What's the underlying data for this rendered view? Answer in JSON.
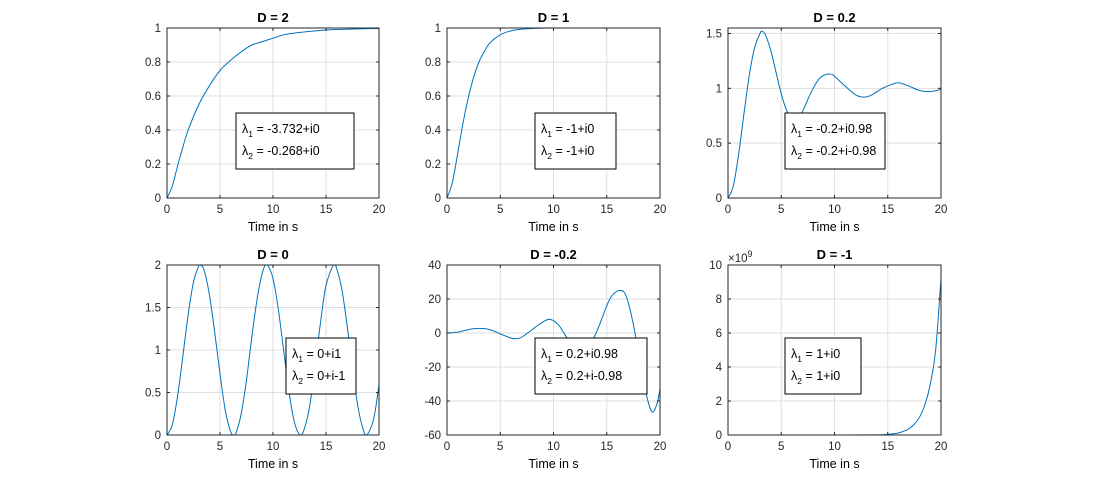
{
  "chart_data": [
    {
      "type": "line",
      "title": "D = 2",
      "xlabel": "Time in s",
      "xlim": [
        0,
        20
      ],
      "ylim": [
        0,
        1
      ],
      "xticks": [
        0,
        5,
        10,
        15,
        20
      ],
      "yticks": [
        0,
        0.2,
        0.4,
        0.6,
        0.8,
        1
      ],
      "grid": true,
      "annotation": [
        {
          "symbol": "λ",
          "subscript": "1",
          "text": " = -3.732+i0"
        },
        {
          "symbol": "λ",
          "subscript": "2",
          "text": " = -0.268+i0"
        }
      ],
      "series": [
        {
          "x": [
            0,
            0.5,
            1,
            1.5,
            2,
            3,
            4,
            5,
            6,
            7,
            8,
            9,
            10,
            11,
            12,
            13,
            14,
            15,
            16,
            17,
            18,
            19,
            20
          ],
          "y": [
            0,
            0.07,
            0.19,
            0.3,
            0.4,
            0.55,
            0.66,
            0.75,
            0.81,
            0.86,
            0.9,
            0.92,
            0.94,
            0.96,
            0.97,
            0.977,
            0.983,
            0.988,
            0.991,
            0.993,
            0.995,
            0.996,
            0.997
          ]
        }
      ]
    },
    {
      "type": "line",
      "title": "D = 1",
      "xlabel": "Time in s",
      "xlim": [
        0,
        20
      ],
      "ylim": [
        0,
        1
      ],
      "xticks": [
        0,
        5,
        10,
        15,
        20
      ],
      "yticks": [
        0,
        0.2,
        0.4,
        0.6,
        0.8,
        1
      ],
      "grid": true,
      "annotation": [
        {
          "symbol": "λ",
          "subscript": "1",
          "text": " = -1+i0"
        },
        {
          "symbol": "λ",
          "subscript": "2",
          "text": " = -1+i0"
        }
      ],
      "series": [
        {
          "x": [
            0,
            0.5,
            1,
            1.5,
            2,
            2.5,
            3,
            3.5,
            4,
            5,
            6,
            7,
            8,
            9,
            10,
            12,
            15,
            20
          ],
          "y": [
            0,
            0.09,
            0.26,
            0.44,
            0.59,
            0.71,
            0.8,
            0.86,
            0.91,
            0.96,
            0.983,
            0.993,
            0.997,
            0.999,
            1,
            1,
            1,
            1
          ]
        }
      ]
    },
    {
      "type": "line",
      "title": "D = 0.2",
      "xlabel": "Time in s",
      "xlim": [
        0,
        20
      ],
      "ylim": [
        0,
        1.55
      ],
      "xticks": [
        0,
        5,
        10,
        15,
        20
      ],
      "yticks": [
        0,
        0.5,
        1,
        1.5
      ],
      "grid": true,
      "annotation": [
        {
          "symbol": "λ",
          "subscript": "1",
          "text": " = -0.2+i0.98"
        },
        {
          "symbol": "λ",
          "subscript": "2",
          "text": " = -0.2+i-0.98"
        }
      ],
      "series": [
        {
          "x": [
            0,
            0.5,
            1,
            1.5,
            2,
            2.5,
            3,
            3.2,
            3.5,
            4,
            4.5,
            5,
            5.5,
            6,
            6.4,
            7,
            7.5,
            8,
            8.5,
            9,
            9.6,
            10,
            11,
            12,
            12.8,
            13.5,
            14.5,
            15.5,
            16.1,
            17,
            18,
            19,
            20
          ],
          "y": [
            0,
            0.11,
            0.4,
            0.77,
            1.12,
            1.37,
            1.5,
            1.52,
            1.49,
            1.35,
            1.15,
            0.95,
            0.8,
            0.73,
            0.72,
            0.79,
            0.9,
            1.0,
            1.08,
            1.12,
            1.13,
            1.11,
            1.02,
            0.94,
            0.92,
            0.94,
            1.0,
            1.04,
            1.05,
            1.02,
            0.98,
            0.97,
            0.99
          ]
        }
      ]
    },
    {
      "type": "line",
      "title": "D = 0",
      "xlabel": "Time in s",
      "xlim": [
        0,
        20
      ],
      "ylim": [
        0,
        2
      ],
      "xticks": [
        0,
        5,
        10,
        15,
        20
      ],
      "yticks": [
        0,
        0.5,
        1,
        1.5,
        2
      ],
      "grid": true,
      "annotation": [
        {
          "symbol": "λ",
          "subscript": "1",
          "text": " = 0+i1"
        },
        {
          "symbol": "λ",
          "subscript": "2",
          "text": " = 0+i-1"
        }
      ],
      "series": [
        {
          "x": [
            0,
            0.5,
            1,
            1.5,
            2,
            2.5,
            3,
            3.14,
            3.5,
            4,
            4.5,
            5,
            5.5,
            6,
            6.28,
            6.5,
            7,
            7.5,
            8,
            8.5,
            9,
            9.42,
            10,
            10.5,
            11,
            11.5,
            12,
            12.57,
            13,
            13.5,
            14,
            14.5,
            15,
            15.71,
            16,
            16.5,
            17,
            17.5,
            18,
            18.5,
            18.85,
            19.5,
            20
          ],
          "y": [
            0,
            0.12,
            0.46,
            0.93,
            1.42,
            1.8,
            1.99,
            2.0,
            1.94,
            1.65,
            1.21,
            0.72,
            0.29,
            0.04,
            0,
            0.02,
            0.25,
            0.65,
            1.15,
            1.6,
            1.91,
            2.0,
            1.84,
            1.48,
            1.0,
            0.52,
            0.16,
            0,
            0.09,
            0.37,
            0.86,
            1.34,
            1.76,
            2.0,
            1.96,
            1.71,
            1.28,
            0.8,
            0.34,
            0.07,
            0,
            0.19,
            0.59
          ]
        }
      ]
    },
    {
      "type": "line",
      "title": "D = -0.2",
      "xlabel": "Time in s",
      "xlim": [
        0,
        20
      ],
      "ylim": [
        -60,
        40
      ],
      "xticks": [
        0,
        5,
        10,
        15,
        20
      ],
      "yticks": [
        -60,
        -40,
        -20,
        0,
        20,
        40
      ],
      "grid": true,
      "annotation": [
        {
          "symbol": "λ",
          "subscript": "1",
          "text": " = 0.2+i0.98"
        },
        {
          "symbol": "λ",
          "subscript": "2",
          "text": " = 0.2+i-0.98"
        }
      ],
      "series": [
        {
          "x": [
            0,
            1,
            2,
            3,
            4,
            5,
            6,
            6.5,
            7,
            8,
            9,
            9.7,
            10.5,
            11.5,
            12.5,
            13,
            14,
            15,
            15.5,
            16.2,
            16.8,
            17.5,
            18.5,
            19.2,
            19.7,
            20
          ],
          "y": [
            0,
            0.5,
            2,
            2.7,
            2,
            -0.5,
            -3,
            -3.3,
            -2.5,
            2,
            6.5,
            8,
            4.5,
            -5,
            -11,
            -10.5,
            0,
            16,
            22,
            25,
            22,
            5,
            -30,
            -46,
            -42,
            -33
          ]
        }
      ]
    },
    {
      "type": "line",
      "title": "D = -1",
      "xlabel": "Time in s",
      "xlim": [
        0,
        20
      ],
      "ylim": [
        0,
        10
      ],
      "xticks": [
        0,
        5,
        10,
        15,
        20
      ],
      "yticks": [
        0,
        2,
        4,
        6,
        8,
        10
      ],
      "yexponent": "9",
      "grid": true,
      "annotation": [
        {
          "symbol": "λ",
          "subscript": "1",
          "text": " = 1+i0"
        },
        {
          "symbol": "λ",
          "subscript": "2",
          "text": " = 1+i0"
        }
      ],
      "series": [
        {
          "x": [
            0,
            5,
            10,
            14,
            15,
            16,
            16.5,
            17,
            17.5,
            18,
            18.5,
            19,
            19.5,
            20
          ],
          "y": [
            0,
            0,
            0,
            0.01,
            0.04,
            0.12,
            0.22,
            0.37,
            0.64,
            1.07,
            1.8,
            3.0,
            5.0,
            9.2
          ]
        }
      ]
    }
  ]
}
